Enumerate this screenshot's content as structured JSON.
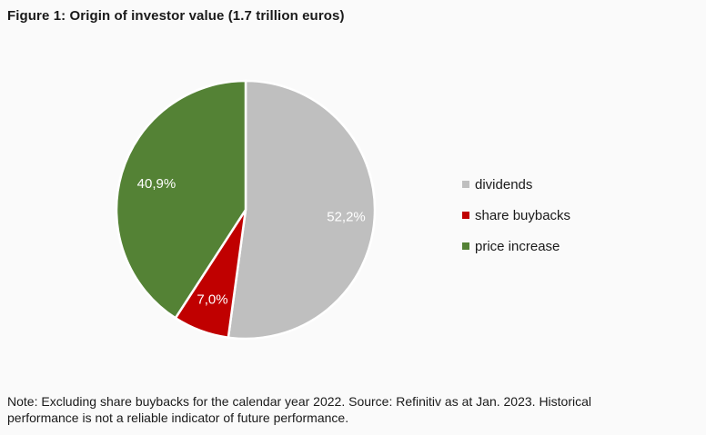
{
  "title": "Figure 1: Origin of investor value (1.7 trillion euros)",
  "chart_data": {
    "type": "pie",
    "title": "Figure 1: Origin of investor value (1.7 trillion euros)",
    "categories": [
      "dividends",
      "share buybacks",
      "price increase"
    ],
    "values": [
      52.2,
      7.0,
      40.9
    ],
    "labels": [
      "52,2%",
      "7,0%",
      "40,9%"
    ],
    "colors": [
      "#bfbfbf",
      "#c00000",
      "#548235"
    ],
    "start_angle": "12 o'clock, clockwise",
    "legend_position": "right"
  },
  "legend": {
    "items": [
      {
        "label": "dividends",
        "color": "#bfbfbf"
      },
      {
        "label": "share buybacks",
        "color": "#c00000"
      },
      {
        "label": "price increase",
        "color": "#548235"
      }
    ]
  },
  "note": {
    "line1": "Note: Excluding share buybacks for the calendar year 2022. Source: Refinitiv as at Jan. 2023. Historical",
    "line2": "performance is not a reliable indicator of future performance."
  }
}
